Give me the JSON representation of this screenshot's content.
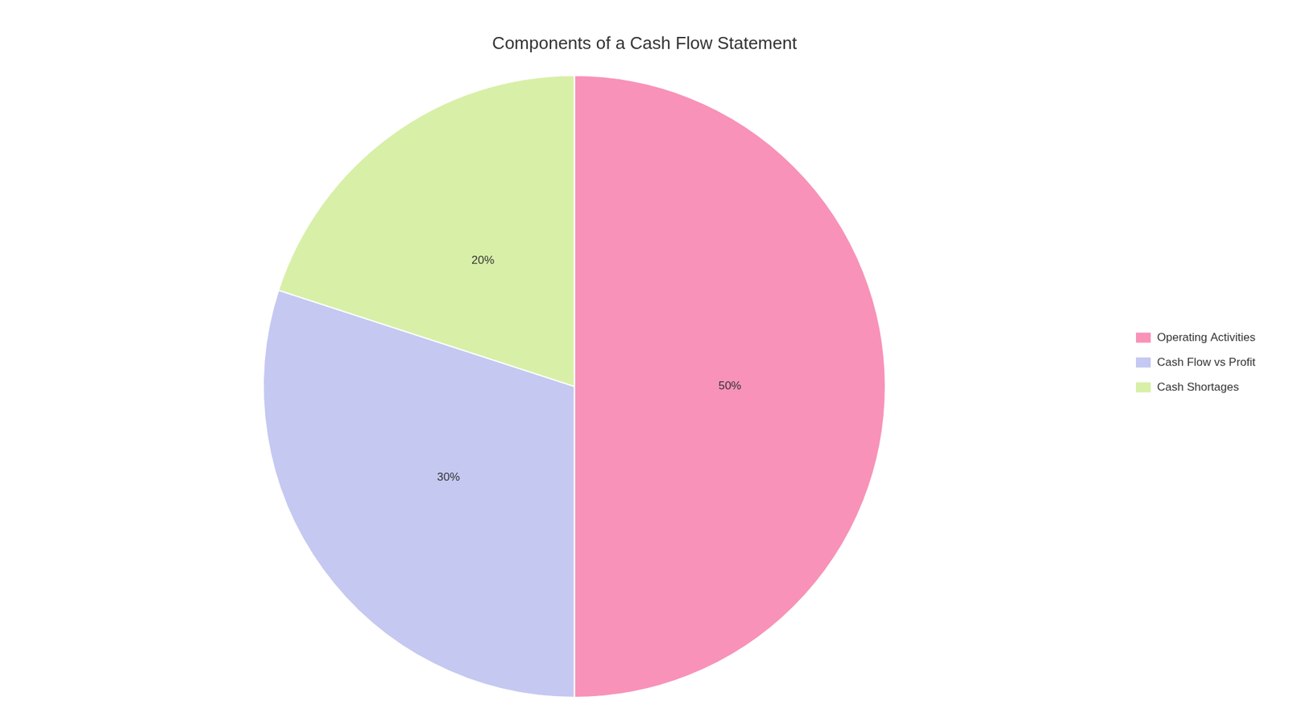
{
  "chart_data": {
    "type": "pie",
    "title": "Components of a Cash Flow Statement",
    "categories": [
      "Operating Activities",
      "Cash Flow vs Profit",
      "Cash Shortages"
    ],
    "values": [
      50,
      30,
      20
    ],
    "value_labels": [
      "50%",
      "30%",
      "20%"
    ],
    "colors": [
      "#F892B8",
      "#C5C8F0",
      "#D8EFA8"
    ],
    "data_labels": true,
    "legend": "right"
  }
}
